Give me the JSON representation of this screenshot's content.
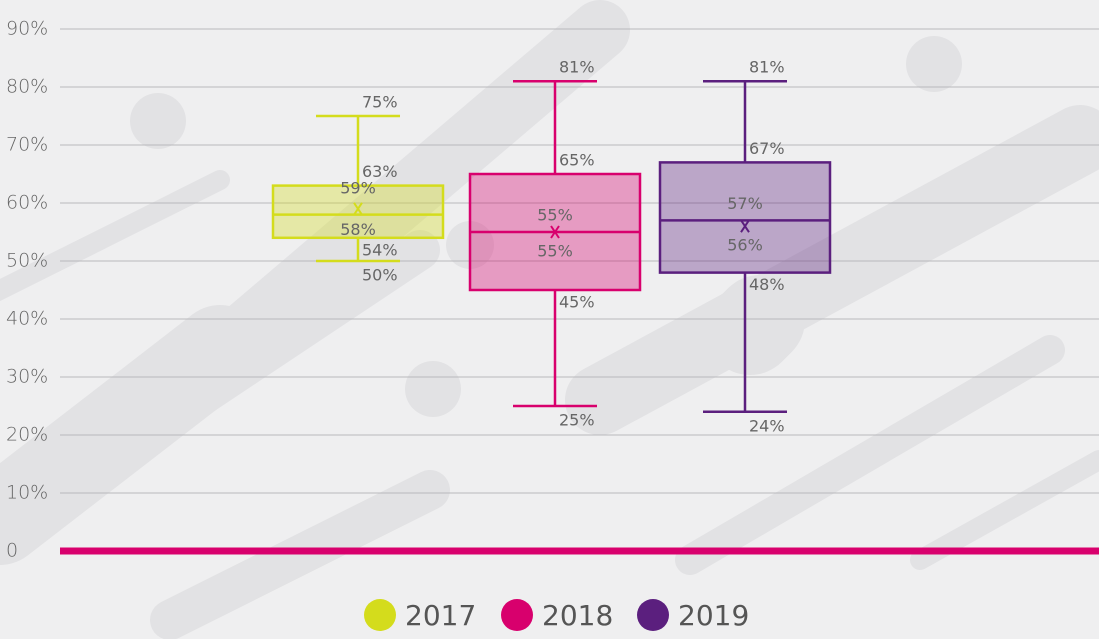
{
  "chart_data": {
    "type": "box",
    "ylim": [
      0,
      90
    ],
    "yticks": [
      0,
      {
        "value": 10,
        "label": "10%"
      },
      {
        "value": 20,
        "label": "20%"
      },
      {
        "value": 30,
        "label": "30%"
      },
      {
        "value": 40,
        "label": "40%"
      },
      {
        "value": 50,
        "label": "50%"
      },
      {
        "value": 60,
        "label": "60%"
      },
      {
        "value": 70,
        "label": "70%"
      },
      {
        "value": 80,
        "label": "80%"
      },
      {
        "value": 90,
        "label": "90%"
      }
    ],
    "grid": true,
    "legend": "bottom",
    "series": [
      {
        "name": "2017",
        "color": "#d4dc1c",
        "min": 50,
        "q1": 54,
        "median": 58,
        "q3": 63,
        "max": 75,
        "mean": 59,
        "value_labels": {
          "min": "50%",
          "q1": "54%",
          "median": "58%",
          "q3": "63%",
          "max": "75%",
          "mean": "59%"
        }
      },
      {
        "name": "2018",
        "color": "#d8006d",
        "min": 25,
        "q1": 45,
        "median": 55,
        "q3": 65,
        "max": 81,
        "mean": 55,
        "value_labels": {
          "min": "25%",
          "q1": "45%",
          "median": "55%",
          "q3": "65%",
          "max": "81%",
          "mean": "55%"
        }
      },
      {
        "name": "2019",
        "color": "#5b1f7e",
        "min": 24,
        "q1": 48,
        "median": 57,
        "q3": 67,
        "max": 81,
        "mean": 56,
        "value_labels": {
          "min": "24%",
          "q1": "48%",
          "median": "57%",
          "q3": "67%",
          "max": "81%",
          "mean": "56%"
        }
      }
    ]
  }
}
